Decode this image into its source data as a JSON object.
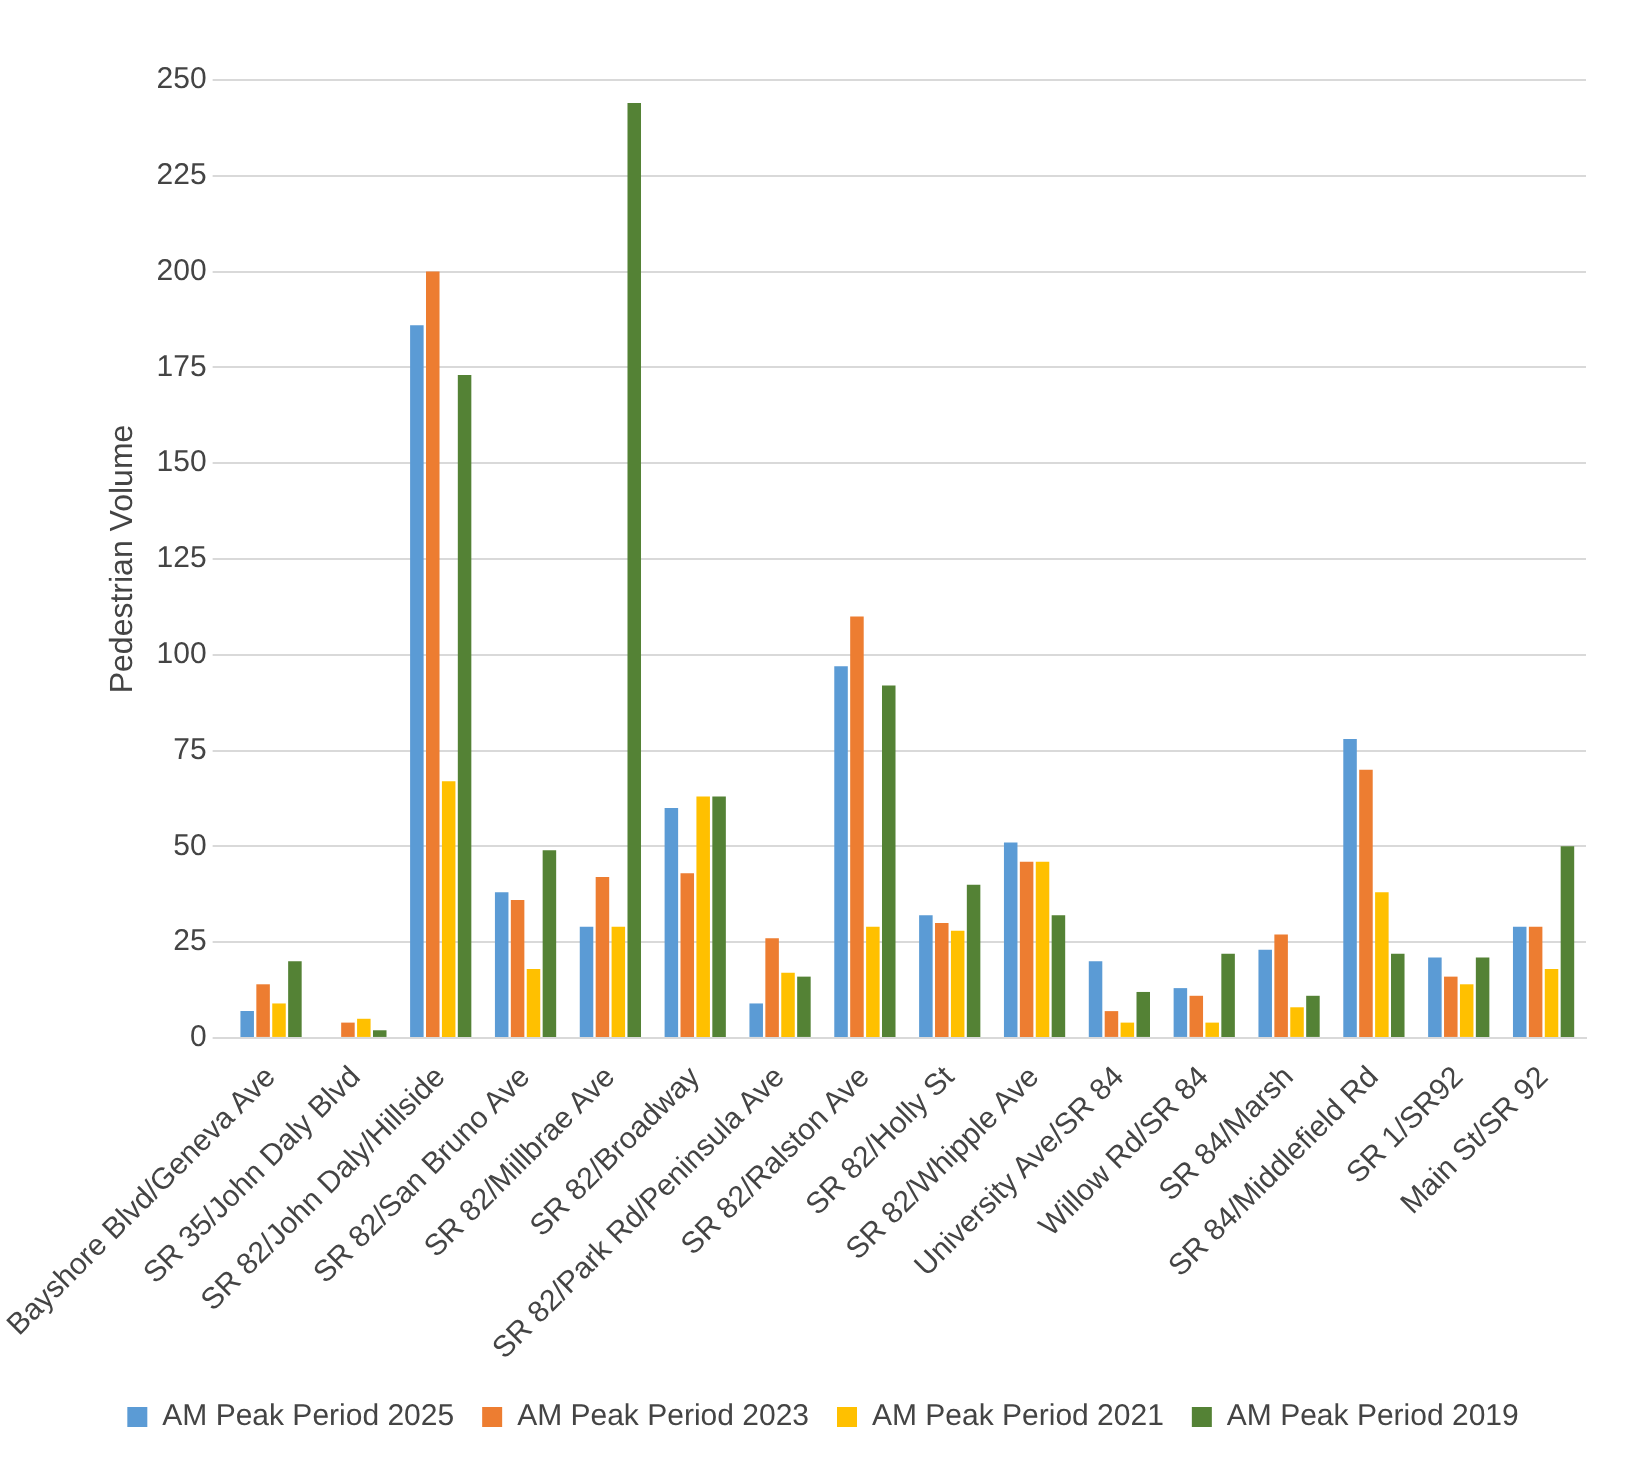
{
  "chart_data": {
    "type": "bar",
    "ylabel": "Pedestrian Volume",
    "categories": [
      "Bayshore Blvd/Geneva Ave",
      "SR 35/John Daly Blvd",
      "SR 82/John Daly/Hillside",
      "SR 82/San Bruno Ave",
      "SR 82/Millbrae Ave",
      "SR 82/Broadway",
      "SR 82/Park Rd/Peninsula Ave",
      "SR 82/Ralston Ave",
      "SR 82/Holly St",
      "SR 82/Whipple Ave",
      "University Ave/SR 84",
      "Willow Rd/SR 84",
      "SR 84/Marsh",
      "SR 84/Middlefield Rd",
      "SR 1/SR92",
      "Main St/SR 92"
    ],
    "series": [
      {
        "name": "AM Peak Period 2025",
        "color": "#5b9bd5",
        "values": [
          7,
          0,
          186,
          38,
          29,
          60,
          9,
          97,
          32,
          51,
          20,
          13,
          23,
          78,
          21,
          29
        ]
      },
      {
        "name": "AM Peak Period 2023",
        "color": "#ed7d31",
        "values": [
          14,
          4,
          200,
          36,
          42,
          43,
          26,
          110,
          30,
          46,
          7,
          11,
          27,
          70,
          16,
          29
        ]
      },
      {
        "name": "AM Peak Period 2021",
        "color": "#ffc000",
        "values": [
          9,
          5,
          67,
          18,
          29,
          63,
          17,
          29,
          28,
          46,
          4,
          4,
          8,
          38,
          14,
          18
        ]
      },
      {
        "name": "AM Peak Period 2019",
        "color": "#548235",
        "values": [
          20,
          2,
          173,
          49,
          244,
          63,
          16,
          92,
          40,
          32,
          12,
          22,
          11,
          22,
          21,
          50
        ]
      }
    ],
    "ylim": [
      0,
      250
    ],
    "yticks": [
      0,
      25,
      50,
      75,
      100,
      125,
      150,
      175,
      200,
      225,
      250
    ],
    "grid": "y",
    "legend": "bottom"
  }
}
